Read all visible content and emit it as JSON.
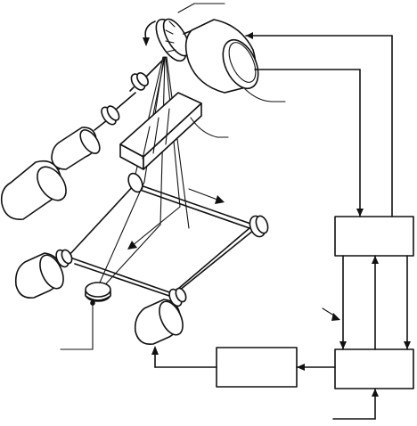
{
  "diagram": {
    "labels": []
  }
}
